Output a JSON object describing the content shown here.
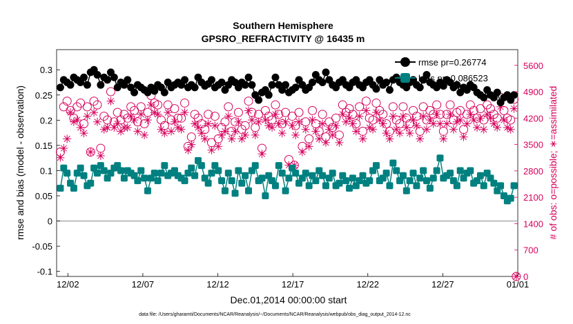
{
  "chart_data": {
    "type": "line",
    "title": "Southern Hemisphere",
    "subtitle": "GPSRO_REFRACTIVITY @ 16435 m",
    "xlabel": "Dec.01,2014 00:00:00 start",
    "ylabel_left": "rmse and bias (model - observation)",
    "ylabel_right": "# of obs: o=possible; ∗=assimilated",
    "footer": "data file: /Users/gharamti/Documents/NCAR/Reanalysis/~/Documents/NCAR/Reanalysis/webpub/obs_diag_output_2014-12.nc",
    "x_ticks": [
      "12/02",
      "12/07",
      "12/12",
      "12/17",
      "12/22",
      "12/27",
      "01/01"
    ],
    "x_tick_days": [
      1,
      6,
      11,
      16,
      21,
      26,
      31
    ],
    "xlim_days": [
      0.25,
      31.0
    ],
    "ylim_left": [
      -0.11,
      0.34
    ],
    "ylim_right": [
      0,
      6016
    ],
    "y_ticks_left": [
      "0.3",
      "0.25",
      "0.2",
      "0.15",
      "0.1",
      "0.05",
      "0",
      "-0.05",
      "-0.1"
    ],
    "y_ticks_right": [
      "5600",
      "4900",
      "4200",
      "3500",
      "2800",
      "2100",
      "1400",
      "700",
      "0"
    ],
    "colors": {
      "rmse": "#000000",
      "bias": "#008080",
      "obs": "#d6005c",
      "zero_line": "#aaaaaa"
    },
    "legend": {
      "placement": "top-right"
    },
    "series": [
      {
        "name": "rmse pr=0.26774",
        "key": "rmse",
        "values": [
          0.265,
          0.28,
          0.275,
          0.27,
          0.285,
          0.28,
          0.275,
          0.285,
          0.27,
          0.295,
          0.3,
          0.29,
          0.27,
          0.285,
          0.28,
          0.295,
          0.285,
          0.265,
          0.275,
          0.27,
          0.28,
          0.265,
          0.255,
          0.27,
          0.265,
          0.26,
          0.255,
          0.265,
          0.258,
          0.27,
          0.265,
          0.255,
          0.275,
          0.265,
          0.27,
          0.275,
          0.27,
          0.28,
          0.265,
          0.27,
          0.265,
          0.285,
          0.275,
          0.268,
          0.272,
          0.28,
          0.265,
          0.27,
          0.275,
          0.26,
          0.27,
          0.28,
          0.275,
          0.265,
          0.275,
          0.27,
          0.285,
          0.27,
          0.25,
          0.24,
          0.255,
          0.26,
          0.25,
          0.27,
          0.285,
          0.27,
          0.26,
          0.27,
          0.255,
          0.26,
          0.265,
          0.28,
          0.27,
          0.26,
          0.265,
          0.275,
          0.29,
          0.28,
          0.275,
          0.295,
          0.28,
          0.27,
          0.265,
          0.275,
          0.28,
          0.27,
          0.265,
          0.275,
          0.28,
          0.27,
          0.265,
          0.275,
          0.28,
          0.27,
          0.262,
          0.28,
          0.27,
          0.275,
          0.26,
          0.28,
          0.285,
          0.275,
          0.27,
          0.265,
          0.275,
          0.28,
          0.27,
          0.265,
          0.28,
          0.29,
          0.275,
          0.27,
          0.265,
          0.275,
          0.268,
          0.28,
          0.275,
          0.265,
          0.27,
          0.255,
          0.265,
          0.26,
          0.27,
          0.265,
          0.255,
          0.25,
          0.245,
          0.26,
          0.25,
          0.245,
          0.255,
          0.235,
          0.245,
          0.25,
          0.24,
          0.25
        ]
      },
      {
        "name": "bias pr=0.086523",
        "key": "bias",
        "values": [
          0.065,
          0.105,
          0.095,
          0.075,
          0.065,
          0.095,
          0.105,
          0.09,
          0.07,
          0.075,
          0.105,
          0.095,
          0.11,
          0.1,
          0.085,
          0.095,
          0.105,
          0.11,
          0.1,
          0.085,
          0.1,
          0.095,
          0.09,
          0.08,
          0.1,
          0.085,
          0.06,
          0.085,
          0.095,
          0.08,
          0.095,
          0.11,
          0.09,
          0.095,
          0.1,
          0.09,
          0.085,
          0.08,
          0.095,
          0.105,
          0.09,
          0.12,
          0.11,
          0.085,
          0.075,
          0.095,
          0.11,
          0.1,
          0.08,
          0.06,
          0.095,
          0.08,
          0.055,
          0.1,
          0.075,
          0.09,
          0.06,
          0.1,
          0.11,
          0.08,
          0.085,
          0.05,
          0.09,
          0.08,
          0.07,
          0.11,
          0.095,
          0.06,
          0.085,
          0.105,
          0.095,
          0.075,
          0.085,
          0.095,
          0.07,
          0.09,
          0.08,
          0.1,
          0.09,
          0.07,
          0.085,
          0.095,
          0.07,
          0.075,
          0.09,
          0.08,
          0.065,
          0.085,
          0.07,
          0.08,
          0.09,
          0.075,
          0.08,
          0.1,
          0.11,
          0.08,
          0.085,
          0.095,
          0.07,
          0.115,
          0.1,
          0.08,
          0.09,
          0.06,
          0.08,
          0.095,
          0.07,
          0.085,
          0.1,
          0.08,
          0.065,
          0.085,
          0.1,
          0.125,
          0.085,
          0.09,
          0.095,
          0.08,
          0.07,
          0.1,
          0.085,
          0.095,
          0.1,
          0.075,
          0.08,
          0.09,
          0.07,
          0.095,
          0.085,
          0.075,
          0.06,
          0.07,
          0.05,
          0.04,
          0.045,
          0.07
        ]
      },
      {
        "name": "possible obs",
        "key": "obs_possible",
        "values": [
          3300,
          4500,
          4650,
          4400,
          4200,
          4500,
          4600,
          4050,
          4500,
          3300,
          4650,
          4550,
          3400,
          4250,
          4150,
          4900,
          4100,
          4350,
          4150,
          4300,
          4200,
          4500,
          4400,
          4100,
          4500,
          4050,
          4350,
          4800,
          4600,
          4550,
          4150,
          4000,
          4550,
          4150,
          4450,
          4200,
          4200,
          4600,
          3450,
          3700,
          4300,
          4200,
          4050,
          3900,
          4300,
          3550,
          4250,
          3650,
          3950,
          4100,
          4500,
          3850,
          4100,
          4350,
          3900,
          4000,
          4650,
          4350,
          3950,
          4300,
          3400,
          4400,
          4250,
          4150,
          4550,
          4300,
          4050,
          4350,
          3100,
          4250,
          4000,
          4350,
          3450,
          4100,
          3650,
          4400,
          4050,
          3850,
          4300,
          3700,
          4100,
          3950,
          4200,
          3750,
          4550,
          4350,
          4450,
          4300,
          4050,
          4500,
          3850,
          4650,
          4200,
          4150,
          4600,
          4400,
          4300,
          4050,
          3850,
          4500,
          4150,
          4050,
          4500,
          4200,
          4050,
          4400,
          4250,
          3850,
          4500,
          4150,
          4400,
          4300,
          4550,
          4300,
          3850,
          4300,
          4550,
          4150,
          4350,
          4400,
          3900,
          4300,
          4550,
          4400,
          4200,
          4450,
          4150,
          4550,
          4450,
          4300,
          4200,
          4750,
          4400,
          4200,
          4150,
          4700
        ]
      },
      {
        "name": "assimilated obs",
        "key": "obs_assimilated",
        "values": [
          3150,
          3400,
          3650,
          4350,
          4100,
          4150,
          3950,
          3800,
          4250,
          3300,
          4350,
          4100,
          3200,
          3900,
          3950,
          4650,
          3950,
          4050,
          3850,
          3950,
          3950,
          4250,
          4150,
          3850,
          4300,
          3750,
          4150,
          4550,
          4350,
          4300,
          3900,
          3800,
          4350,
          3850,
          4100,
          3950,
          3900,
          4350,
          3350,
          3500,
          4050,
          3950,
          3800,
          3650,
          4050,
          3350,
          4000,
          3450,
          3750,
          3850,
          4250,
          3650,
          3850,
          4100,
          3650,
          3750,
          4400,
          4150,
          3750,
          4100,
          3250,
          4150,
          4000,
          3950,
          4300,
          4050,
          3800,
          4100,
          2950,
          4000,
          3750,
          4100,
          3300,
          3900,
          3450,
          4150,
          3850,
          3650,
          4050,
          3550,
          3900,
          3750,
          4000,
          3550,
          4300,
          4100,
          4200,
          4050,
          3850,
          4250,
          3650,
          4400,
          3950,
          3900,
          4350,
          4150,
          4050,
          3800,
          3650,
          4250,
          3900,
          3800,
          4250,
          3950,
          3800,
          4150,
          4000,
          3650,
          4250,
          3900,
          4150,
          4050,
          4300,
          4050,
          3650,
          4050,
          4300,
          3900,
          4100,
          4150,
          3700,
          4050,
          4300,
          4150,
          3950,
          4200,
          3900,
          4300,
          4200,
          4050,
          3950,
          4500,
          4150,
          3950,
          3900,
          4450
        ]
      }
    ],
    "extra_markers": [
      {
        "key": "obs_possible",
        "day": 16.1,
        "value": 2950
      },
      {
        "key": "obs_assimilated",
        "day": 16.1,
        "value": 2950
      },
      {
        "key": "obs_possible",
        "day": 30.9,
        "value": 0
      },
      {
        "key": "obs_assimilated",
        "day": 30.9,
        "value": 0
      }
    ]
  }
}
